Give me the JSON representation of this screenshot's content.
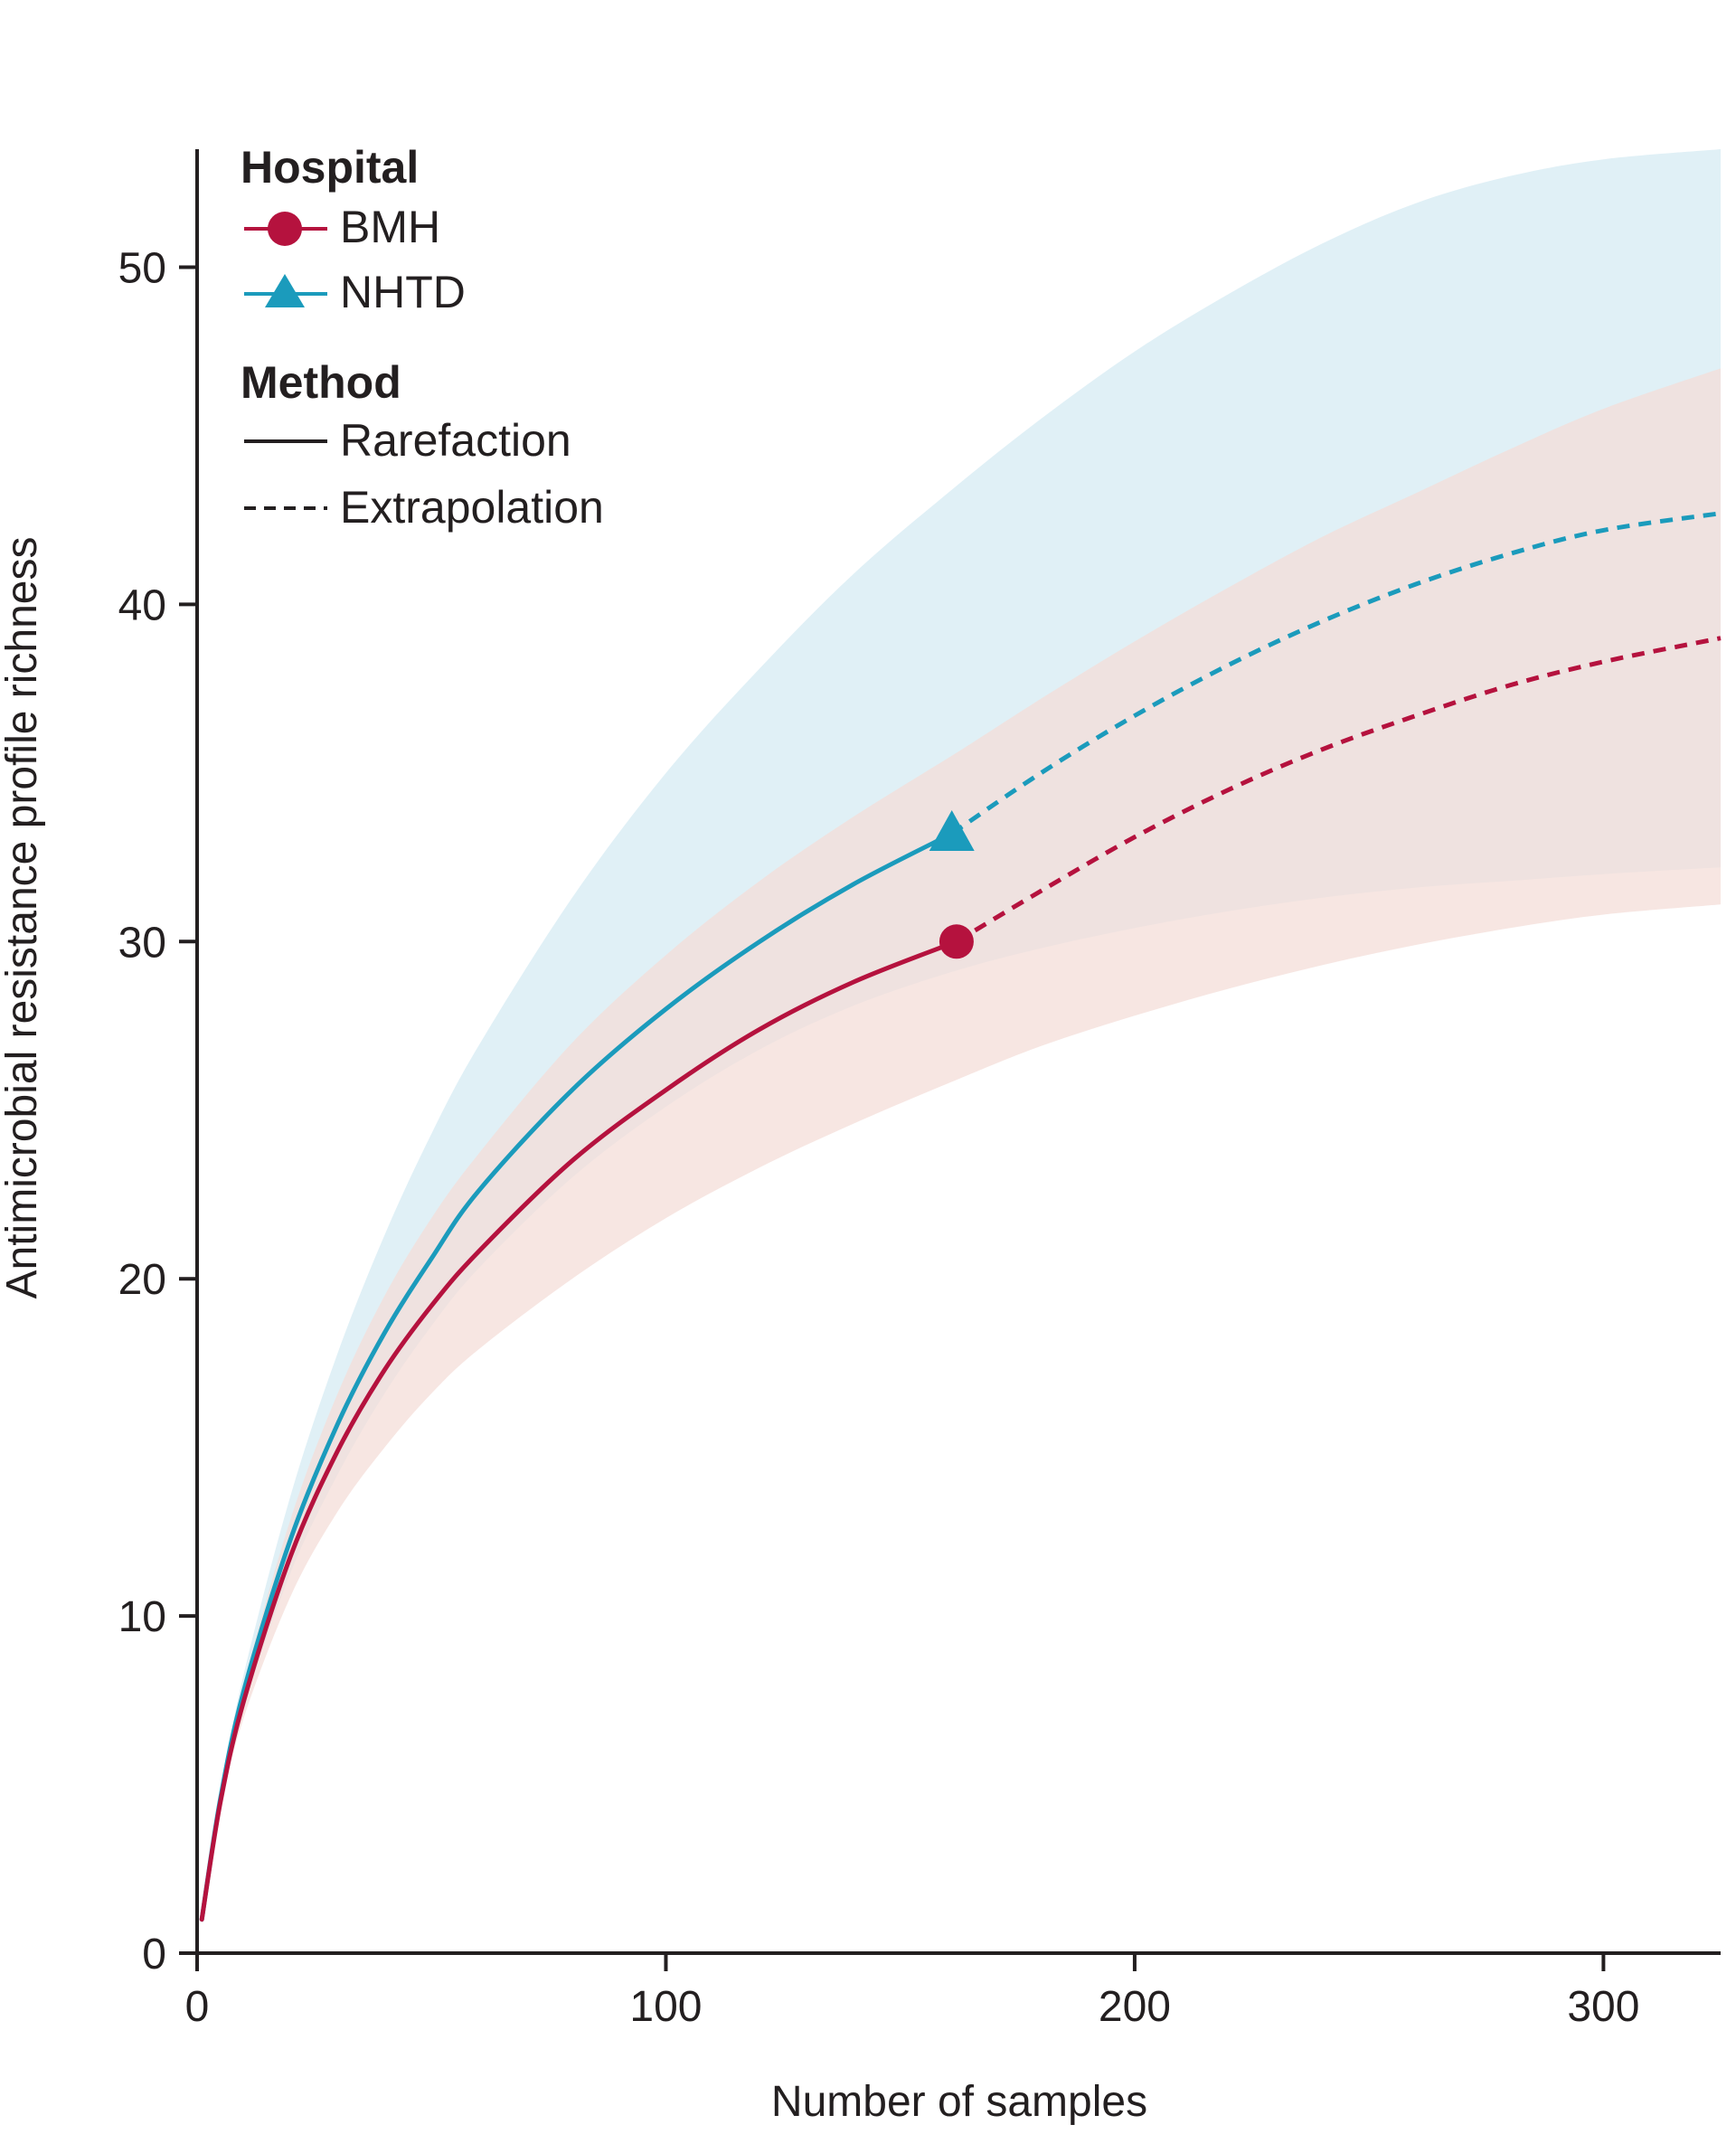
{
  "chart_data": {
    "type": "line",
    "title": "",
    "xlabel": "Number of samples",
    "ylabel": "Antimicrobial resistance profile richness",
    "xlim": [
      0,
      325
    ],
    "ylim": [
      0,
      53.5
    ],
    "x_ticks": [
      0,
      100,
      200,
      300
    ],
    "y_ticks": [
      0,
      10,
      20,
      30,
      40,
      50
    ],
    "grid": false,
    "legend": {
      "position": "top-left",
      "hospital_heading": "Hospital",
      "method_heading": "Method",
      "hospitals": [
        {
          "name": "BMH",
          "color": "#b5123e",
          "marker": "circle"
        },
        {
          "name": "NHTD",
          "color": "#1b9bbc",
          "marker": "triangle"
        }
      ],
      "methods": [
        {
          "name": "Rarefaction",
          "style": "solid"
        },
        {
          "name": "Extrapolation",
          "style": "dashed"
        }
      ]
    },
    "series": [
      {
        "name": "BMH",
        "color": "#b5123e",
        "marker": "circle",
        "band_color": "#f4ddd8",
        "observed": {
          "x": 162,
          "y": 30
        },
        "x": [
          1,
          5,
          10,
          20,
          30,
          40,
          50,
          60,
          80,
          100,
          120,
          140,
          162,
          180,
          200,
          220,
          240,
          260,
          280,
          300,
          325
        ],
        "y": [
          1,
          4.5,
          7.5,
          11.8,
          14.9,
          17.3,
          19.2,
          20.8,
          23.5,
          25.6,
          27.4,
          28.8,
          30,
          31.5,
          33.1,
          34.5,
          35.7,
          36.7,
          37.6,
          38.3,
          39
        ],
        "lower": [
          1,
          4.3,
          7.0,
          10.6,
          13.1,
          15.0,
          16.6,
          17.9,
          20.0,
          21.8,
          23.3,
          24.6,
          25.9,
          26.9,
          27.8,
          28.6,
          29.3,
          29.9,
          30.4,
          30.8,
          31.1
        ],
        "upper": [
          1,
          4.7,
          8.0,
          12.9,
          16.6,
          19.5,
          21.8,
          23.7,
          27.0,
          29.6,
          31.8,
          33.7,
          35.6,
          37.2,
          38.9,
          40.5,
          42.0,
          43.3,
          44.6,
          45.8,
          47.0
        ]
      },
      {
        "name": "NHTD",
        "color": "#1b9bbc",
        "marker": "triangle",
        "band_color": "#e0f0f6",
        "observed": {
          "x": 161,
          "y": 33.2
        },
        "x": [
          1,
          5,
          10,
          20,
          30,
          40,
          50,
          60,
          80,
          100,
          120,
          140,
          161,
          180,
          200,
          220,
          240,
          260,
          280,
          300,
          325
        ],
        "y": [
          1,
          4.6,
          7.8,
          12.3,
          15.7,
          18.4,
          20.6,
          22.6,
          25.6,
          28.0,
          30.0,
          31.7,
          33.2,
          35.0,
          36.7,
          38.2,
          39.5,
          40.6,
          41.5,
          42.2,
          42.7
        ],
        "lower": [
          1,
          4.4,
          7.3,
          11.3,
          14.2,
          16.6,
          18.6,
          20.3,
          23.0,
          25.1,
          26.8,
          28.1,
          29.1,
          29.8,
          30.4,
          30.9,
          31.3,
          31.6,
          31.8,
          32.0,
          32.2
        ],
        "upper": [
          1,
          4.8,
          8.3,
          13.6,
          17.8,
          21.3,
          24.3,
          26.9,
          31.3,
          35.0,
          38.1,
          40.9,
          43.4,
          45.5,
          47.5,
          49.2,
          50.7,
          51.9,
          52.7,
          53.2,
          53.5
        ]
      }
    ]
  }
}
